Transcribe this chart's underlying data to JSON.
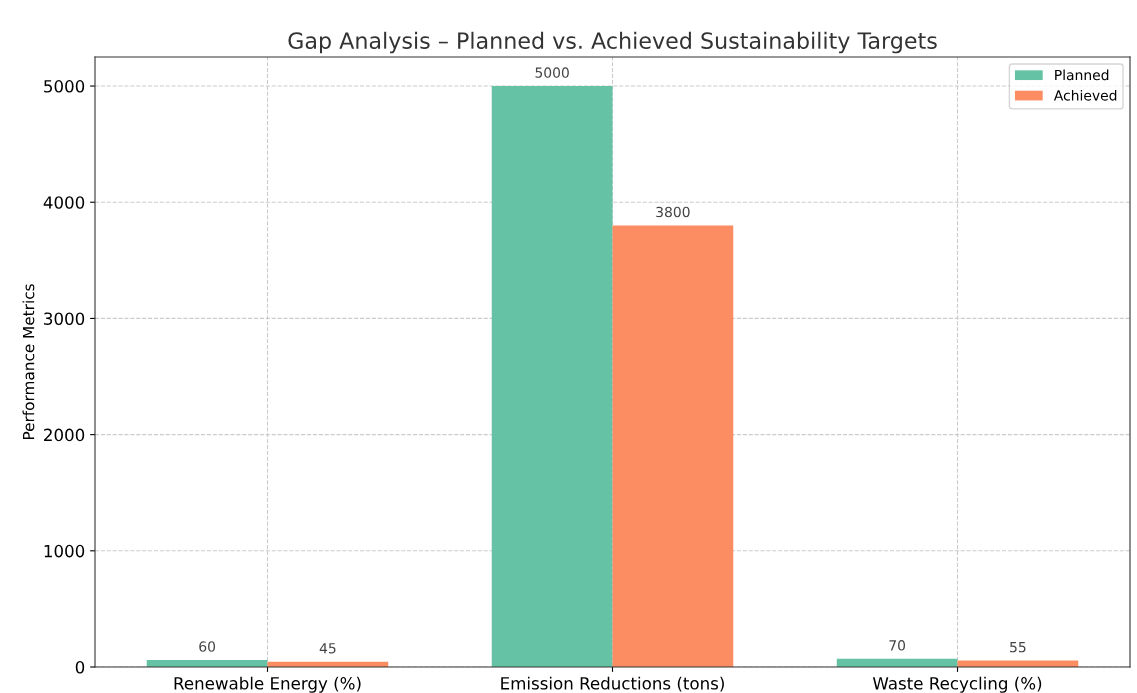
{
  "chart_data": {
    "type": "bar",
    "title": "Gap Analysis – Planned vs. Achieved Sustainability Targets",
    "ylabel": "Performance Metrics",
    "categories": [
      "Renewable Energy (%)",
      "Emission Reductions (tons)",
      "Waste Recycling (%)"
    ],
    "series": [
      {
        "name": "Planned",
        "color": "#66c2a5",
        "values": [
          60,
          5000,
          70
        ]
      },
      {
        "name": "Achieved",
        "color": "#fc8d62",
        "values": [
          45,
          3800,
          55
        ]
      }
    ],
    "ylim": [
      0,
      5250
    ],
    "yticks": [
      0,
      1000,
      2000,
      3000,
      4000,
      5000
    ],
    "grid": true,
    "legend": "top right",
    "data_labels": true
  }
}
